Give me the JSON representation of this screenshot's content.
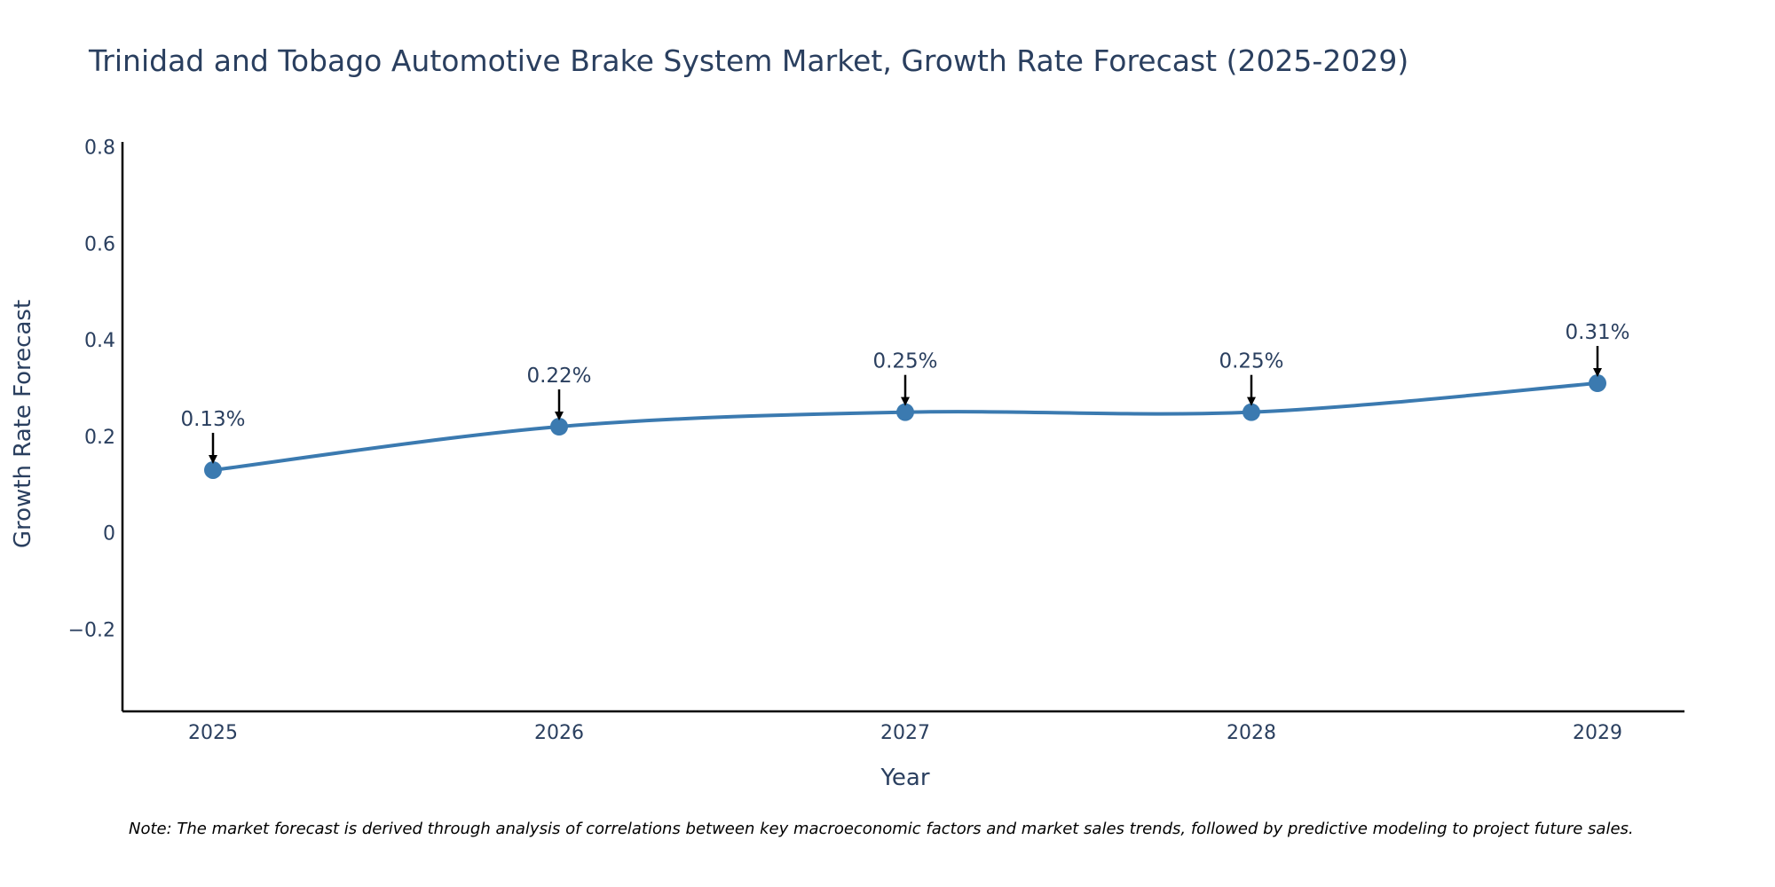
{
  "colors": {
    "series": "#3b7ab0",
    "text": "#2a3f5f",
    "axis": "#000000",
    "arrow": "#000000"
  },
  "chart_data": {
    "type": "line",
    "title": "Trinidad and Tobago Automotive Brake System Market, Growth Rate Forecast (2025-2029)",
    "xlabel": "Year",
    "ylabel": "Growth Rate Forecast",
    "x": [
      "2025",
      "2026",
      "2027",
      "2028",
      "2029"
    ],
    "values": [
      0.13,
      0.22,
      0.25,
      0.25,
      0.31
    ],
    "annotations": [
      "0.13%",
      "0.22%",
      "0.25%",
      "0.25%",
      "0.31%"
    ],
    "ylim": [
      -0.37,
      0.81
    ],
    "yticks": [
      -0.2,
      0,
      0.2,
      0.4,
      0.6,
      0.8
    ],
    "ytick_labels": [
      "−0.2",
      "0",
      "0.2",
      "0.4",
      "0.6",
      "0.8"
    ],
    "grid": false,
    "legend": "none",
    "line_shape": "spline"
  },
  "note": "Note: The market forecast is derived through analysis of correlations between key macroeconomic factors and market sales trends, followed by predictive modeling to project future sales."
}
